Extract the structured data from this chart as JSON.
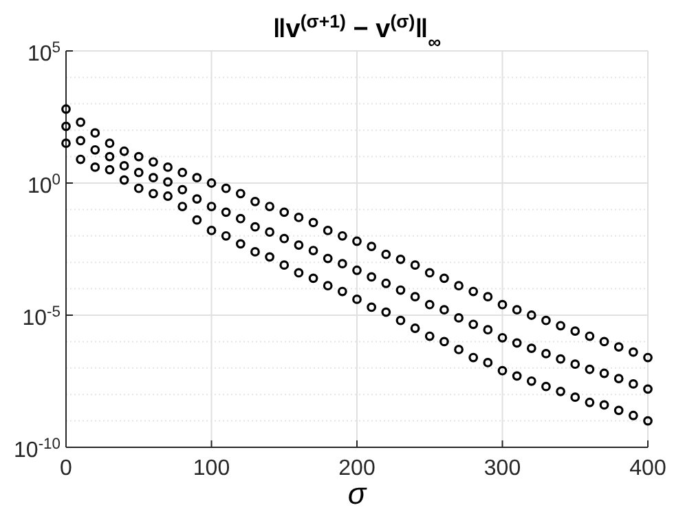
{
  "chart_data": {
    "type": "scatter",
    "title": "‖v$^{(σ+1)}$ − v$^{(σ)}$‖$_{∞}$",
    "xlabel": "σ",
    "x": [
      0,
      10,
      20,
      30,
      40,
      50,
      60,
      70,
      80,
      90,
      100,
      110,
      120,
      130,
      140,
      150,
      160,
      170,
      180,
      190,
      200,
      210,
      220,
      230,
      240,
      250,
      260,
      270,
      280,
      290,
      300,
      310,
      320,
      330,
      340,
      350,
      360,
      370,
      380,
      390,
      400
    ],
    "series": [
      {
        "color": "#000000",
        "values": [
          630.0,
          200.0,
          79,
          32,
          16,
          10,
          6.3,
          4.0,
          2.5,
          1.6,
          1.0,
          0.63,
          0.4,
          0.2,
          0.13,
          0.079,
          0.05,
          0.032,
          0.016,
          0.01,
          0.0063,
          0.004,
          0.002,
          0.0013,
          0.00079,
          0.0004,
          0.00025,
          0.00013,
          7.9e-05,
          5e-05,
          2.5e-05,
          1.6e-05,
          1e-05,
          6.3e-06,
          4e-06,
          2.5e-06,
          1.6e-06,
          1e-06,
          6.3e-07,
          4e-07,
          2.5e-07
        ]
      },
      {
        "color": "#000000",
        "values": [
          140.0,
          40,
          18,
          10,
          4.5,
          2.5,
          1.6,
          1.1,
          0.56,
          0.25,
          0.13,
          0.079,
          0.045,
          0.022,
          0.014,
          0.0079,
          0.0045,
          0.0028,
          0.0014,
          0.00089,
          0.0005,
          0.00028,
          0.00016,
          8.9e-05,
          5e-05,
          2.5e-05,
          1.6e-05,
          7.9e-06,
          4.5e-06,
          2.8e-06,
          1.4e-06,
          8.9e-07,
          5.6e-07,
          3.5e-07,
          2.2e-07,
          1.4e-07,
          8.9e-08,
          6.3e-08,
          4e-08,
          2.5e-08,
          1.6e-08
        ]
      },
      {
        "color": "#000000",
        "values": [
          32,
          7.9,
          4.0,
          3.2,
          1.3,
          0.63,
          0.4,
          0.32,
          0.13,
          0.04,
          0.016,
          0.01,
          0.005,
          0.0025,
          0.0016,
          0.00079,
          0.0004,
          0.00025,
          0.00013,
          7.9e-05,
          4e-05,
          2e-05,
          1.3e-05,
          6.3e-06,
          3.2e-06,
          1.6e-06,
          1e-06,
          5e-07,
          2.5e-07,
          1.6e-07,
          7.9e-08,
          5e-08,
          3.2e-08,
          2e-08,
          1.3e-08,
          7.9e-09,
          5e-09,
          4e-09,
          2.5e-09,
          1.6e-09,
          1e-09
        ]
      }
    ],
    "xlim": [
      0,
      400
    ],
    "xticks": [
      0,
      100,
      200,
      300,
      400
    ],
    "ylim": [
      1e-10,
      100000.0
    ],
    "yticks": [
      {
        "value": 1e-10,
        "label": "10$^{-10}$"
      },
      {
        "value": 1e-05,
        "label": "10$^{-5}$"
      },
      {
        "value": 1,
        "label": "10$^{0}$"
      },
      {
        "value": 100000.0,
        "label": "10$^{5}$"
      }
    ],
    "log": true,
    "grid": true,
    "marker": "circle"
  }
}
